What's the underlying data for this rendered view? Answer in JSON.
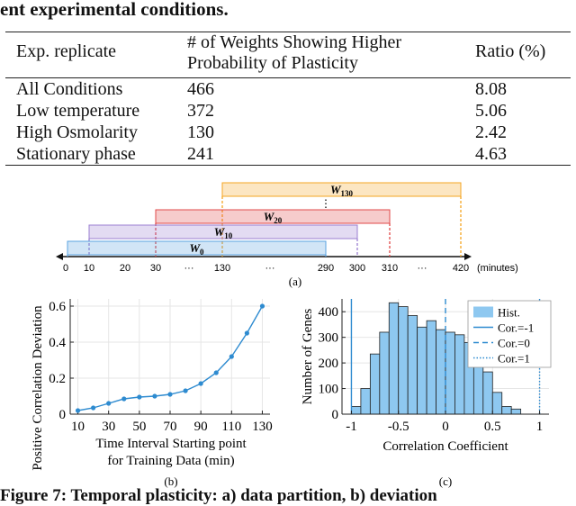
{
  "caption_top": "ent experimental conditions.",
  "caption_bottom": "Figure 7: Temporal plasticity: a) data partition, b) deviation",
  "table": {
    "headers": [
      "Exp. replicate",
      "# of Weights Showing Higher Probability of Plasticity",
      "Ratio (%)"
    ],
    "rows": [
      [
        "All Conditions",
        "466",
        "8.08"
      ],
      [
        "Low temperature",
        "372",
        "5.06"
      ],
      [
        "High Osmolarity",
        "130",
        "2.42"
      ],
      [
        "Stationary phase",
        "241",
        "4.63"
      ]
    ]
  },
  "timeline": {
    "bars": [
      {
        "label": "W",
        "sub": "130",
        "start": 130,
        "end": 420,
        "color": "#f5a623"
      },
      {
        "label": "W",
        "sub": "20",
        "start": 30,
        "end": 310,
        "color": "#e04848"
      },
      {
        "label": "W",
        "sub": "10",
        "start": 10,
        "end": 300,
        "color": "#9b7fd1"
      },
      {
        "label": "W",
        "sub": "0",
        "start": 0,
        "end": 290,
        "color": "#5aa3e0"
      }
    ],
    "ticks": [
      "0",
      "10",
      "20",
      "30",
      "···",
      "130",
      "···",
      "290",
      "300",
      "310",
      "···",
      "420"
    ],
    "unit": "(minutes)",
    "vdots": "⋮",
    "panel": "(a)"
  },
  "chart_data": [
    {
      "type": "line",
      "panel": "(b)",
      "x": [
        10,
        20,
        30,
        40,
        50,
        60,
        70,
        80,
        90,
        100,
        110,
        120,
        130
      ],
      "y": [
        0.02,
        0.035,
        0.06,
        0.085,
        0.095,
        0.1,
        0.11,
        0.13,
        0.17,
        0.23,
        0.32,
        0.45,
        0.6
      ],
      "xlabel_line1": "Time Interval Starting point",
      "xlabel_line2": "for Training Data (min)",
      "ylabel": "Positive Correlation Deviation",
      "xticks": [
        "10",
        "30",
        "50",
        "70",
        "90",
        "110",
        "130"
      ],
      "yticks": [
        "0",
        "0.2",
        "0.4",
        "0.6"
      ],
      "xlim": [
        5,
        135
      ],
      "ylim": [
        0,
        0.64
      ],
      "color": "#2e8bd0"
    },
    {
      "type": "bar",
      "panel": "(c)",
      "bin_edges": [
        -1,
        -0.9,
        -0.8,
        -0.7,
        -0.6,
        -0.5,
        -0.4,
        -0.3,
        -0.2,
        -0.1,
        0,
        0.1,
        0.2,
        0.3,
        0.4,
        0.5,
        0.6,
        0.7,
        0.8
      ],
      "counts": [
        30,
        100,
        235,
        320,
        435,
        420,
        385,
        340,
        365,
        330,
        320,
        310,
        280,
        240,
        165,
        85,
        30,
        20
      ],
      "xlabel": "Correlation Coefficient",
      "ylabel": "Number of Genes",
      "xticks": [
        "-1",
        "-0.5",
        "0",
        "0.5",
        "1"
      ],
      "yticks": [
        "0",
        "100",
        "200",
        "300",
        "400"
      ],
      "xlim": [
        -1.1,
        1.1
      ],
      "ylim": [
        0,
        450
      ],
      "legend": [
        "Hist.",
        "Cor.=-1",
        "Cor.=0",
        "Cor.=1"
      ],
      "bar_color": "#8ec8f0",
      "line_color": "#2e8bd0"
    }
  ]
}
